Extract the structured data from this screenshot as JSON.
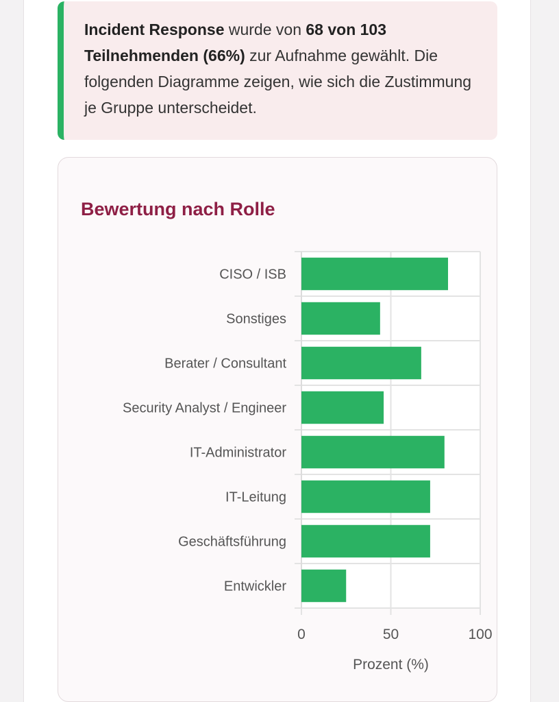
{
  "intro": {
    "topic": "Incident Response",
    "text_1": " wurde von ",
    "count": "68 von 103 Teilnehmenden (66%)",
    "text_2": " zur Aufnahme gewählt. Die folgenden Diagramme zeigen, wie sich die Zustimmung je Gruppe unterscheidet."
  },
  "chart_data": {
    "type": "bar",
    "orientation": "horizontal",
    "title": "Bewertung nach Rolle",
    "xlabel": "Prozent (%)",
    "ylabel": "",
    "categories": [
      "CISO / ISB",
      "Sonstiges",
      "Berater / Consultant",
      "Security Analyst / Engineer",
      "IT-Administrator",
      "IT-Leitung",
      "Geschäftsführung",
      "Entwickler"
    ],
    "values": [
      82,
      44,
      67,
      46,
      80,
      72,
      72,
      25
    ],
    "xlim": [
      0,
      100
    ],
    "xticks": [
      0,
      50,
      100
    ],
    "grid": true,
    "bar_color": "#2bb263"
  }
}
